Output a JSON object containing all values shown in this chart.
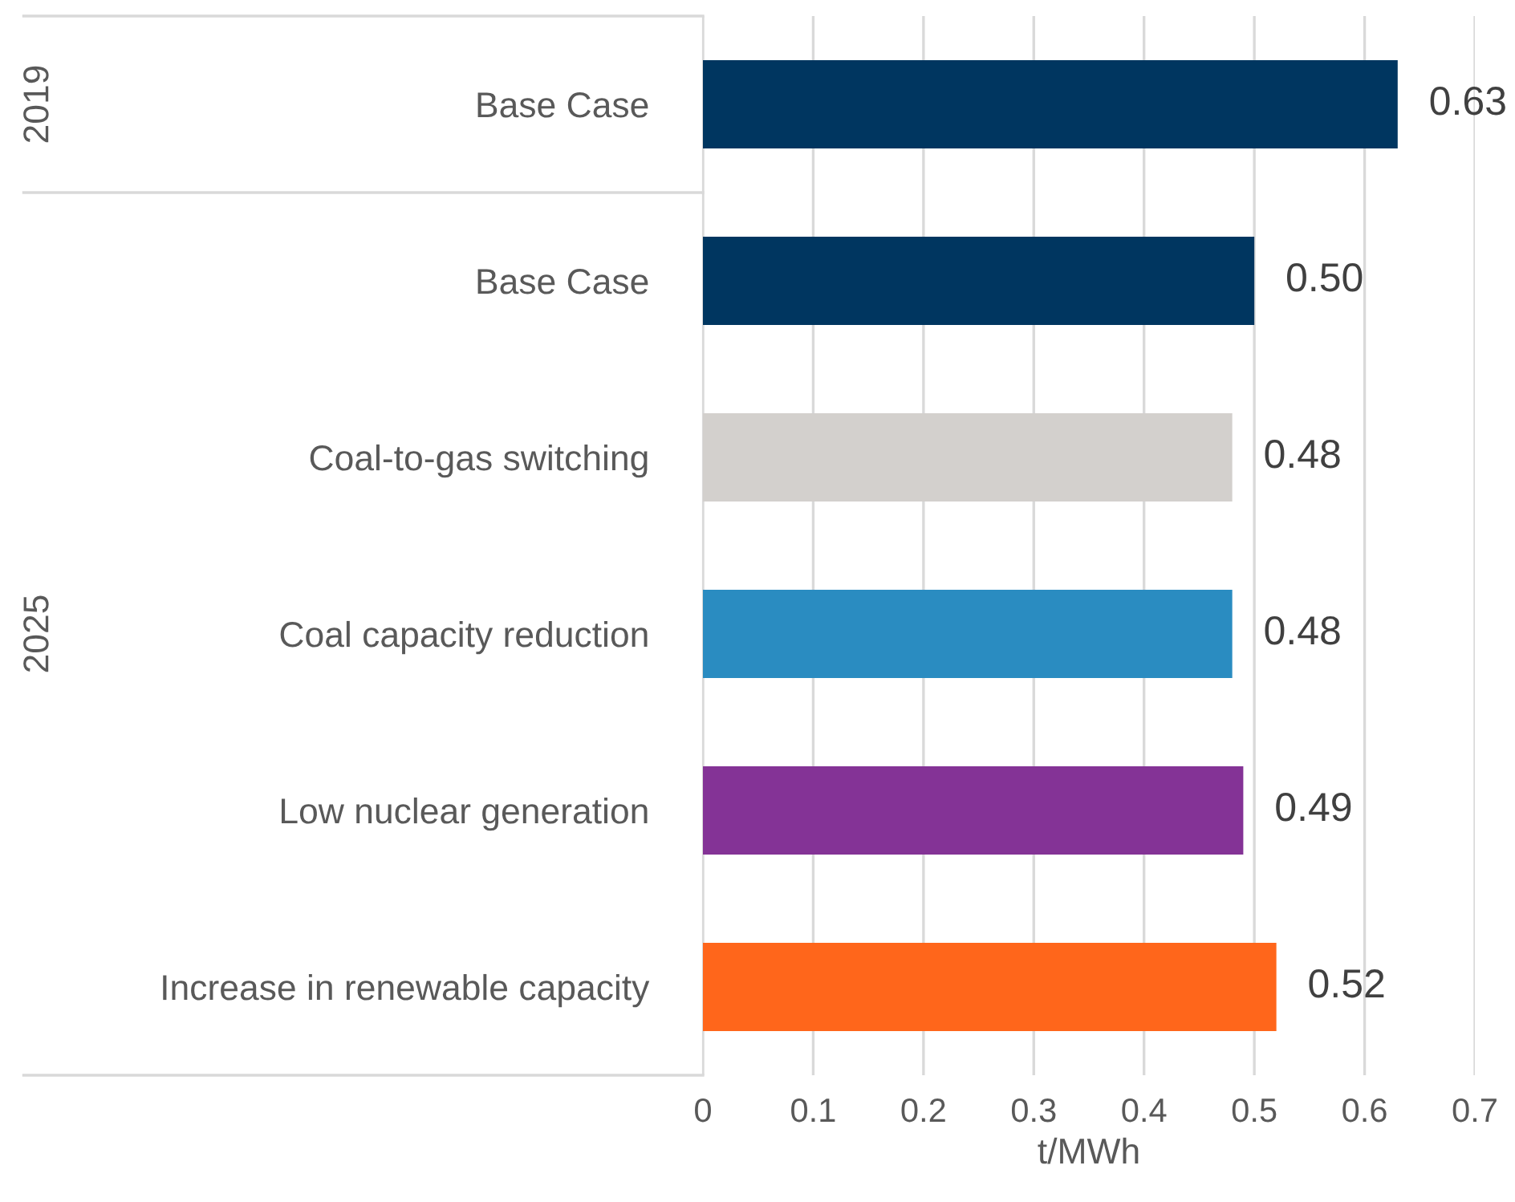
{
  "chart_data": {
    "type": "bar",
    "orientation": "horizontal",
    "categories": [
      "Base Case",
      "Base Case",
      "Coal-to-gas switching",
      "Coal capacity reduction",
      "Low nuclear generation",
      "Increase in renewable capacity"
    ],
    "values": [
      0.63,
      0.5,
      0.48,
      0.48,
      0.49,
      0.52
    ],
    "colors": [
      "#003660",
      "#003660",
      "#d3d0cd",
      "#2a8cc1",
      "#843396",
      "#ff661b"
    ],
    "value_labels": [
      "0.63",
      "0.50",
      "0.48",
      "0.48",
      "0.49",
      "0.52"
    ],
    "xlabel": "t/MWh",
    "xlim": [
      0,
      0.7
    ],
    "xticks": [
      0,
      0.1,
      0.2,
      0.3,
      0.4,
      0.5,
      0.6,
      0.7
    ],
    "grid": "x",
    "annotations": [
      "2019",
      "2025"
    ]
  }
}
